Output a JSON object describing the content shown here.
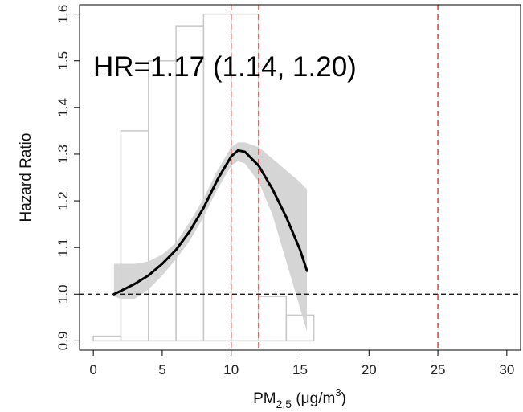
{
  "chart_data": {
    "type": "line",
    "ylabel": "Hazard Ratio",
    "xlabel": {
      "main": "PM",
      "sub": "2.5",
      "unit_open": " (μg/m",
      "sup": "3",
      "unit_close": ")"
    },
    "annotation": "HR=1.17 (1.14, 1.20)",
    "xlim": [
      -1,
      31
    ],
    "ylim": [
      0.88,
      1.62
    ],
    "x_ticks": [
      "0",
      "5",
      "10",
      "15",
      "20",
      "25",
      "30"
    ],
    "y_ticks": [
      "0.9",
      "1.0",
      "1.1",
      "1.2",
      "1.3",
      "1.4",
      "1.5",
      "1.6"
    ],
    "reference_line_y": 1.0,
    "vertical_lines_x": [
      10,
      12,
      25
    ],
    "histogram": {
      "bin_edges": [
        0,
        2,
        4,
        6,
        8,
        10,
        12,
        14,
        16,
        30
      ],
      "tops": [
        0.91,
        1.35,
        1.5,
        1.575,
        1.6,
        1.6,
        0.995,
        0.955,
        0.9
      ],
      "baseline": 0.9
    },
    "series": [
      {
        "x": [
          1.5,
          2,
          3,
          4,
          5,
          6,
          7,
          8,
          9,
          10,
          10.5,
          11,
          12,
          13,
          14,
          15,
          15.5
        ],
        "y": [
          1.0,
          1.007,
          1.022,
          1.04,
          1.065,
          1.095,
          1.135,
          1.185,
          1.245,
          1.295,
          1.308,
          1.305,
          1.275,
          1.225,
          1.165,
          1.095,
          1.05
        ]
      }
    ],
    "confidence_band": {
      "x": [
        1.5,
        2,
        3,
        4,
        5,
        6,
        7,
        8,
        9,
        10,
        10.5,
        11,
        12,
        13,
        14,
        15,
        15.5
      ],
      "lower": [
        0.995,
        0.99,
        0.99,
        1.01,
        1.04,
        1.075,
        1.115,
        1.165,
        1.225,
        1.275,
        1.285,
        1.28,
        1.24,
        1.17,
        1.07,
        0.97,
        0.92
      ],
      "upper": [
        1.065,
        1.065,
        1.065,
        1.07,
        1.085,
        1.11,
        1.155,
        1.205,
        1.265,
        1.315,
        1.325,
        1.325,
        1.315,
        1.29,
        1.265,
        1.24,
        1.225
      ]
    },
    "colors": {
      "line": "#000000",
      "band": "#d3d3d3",
      "histogram": "#c8c8c8",
      "vertical_lines": "#e02020",
      "reference_line": "#000000"
    }
  }
}
